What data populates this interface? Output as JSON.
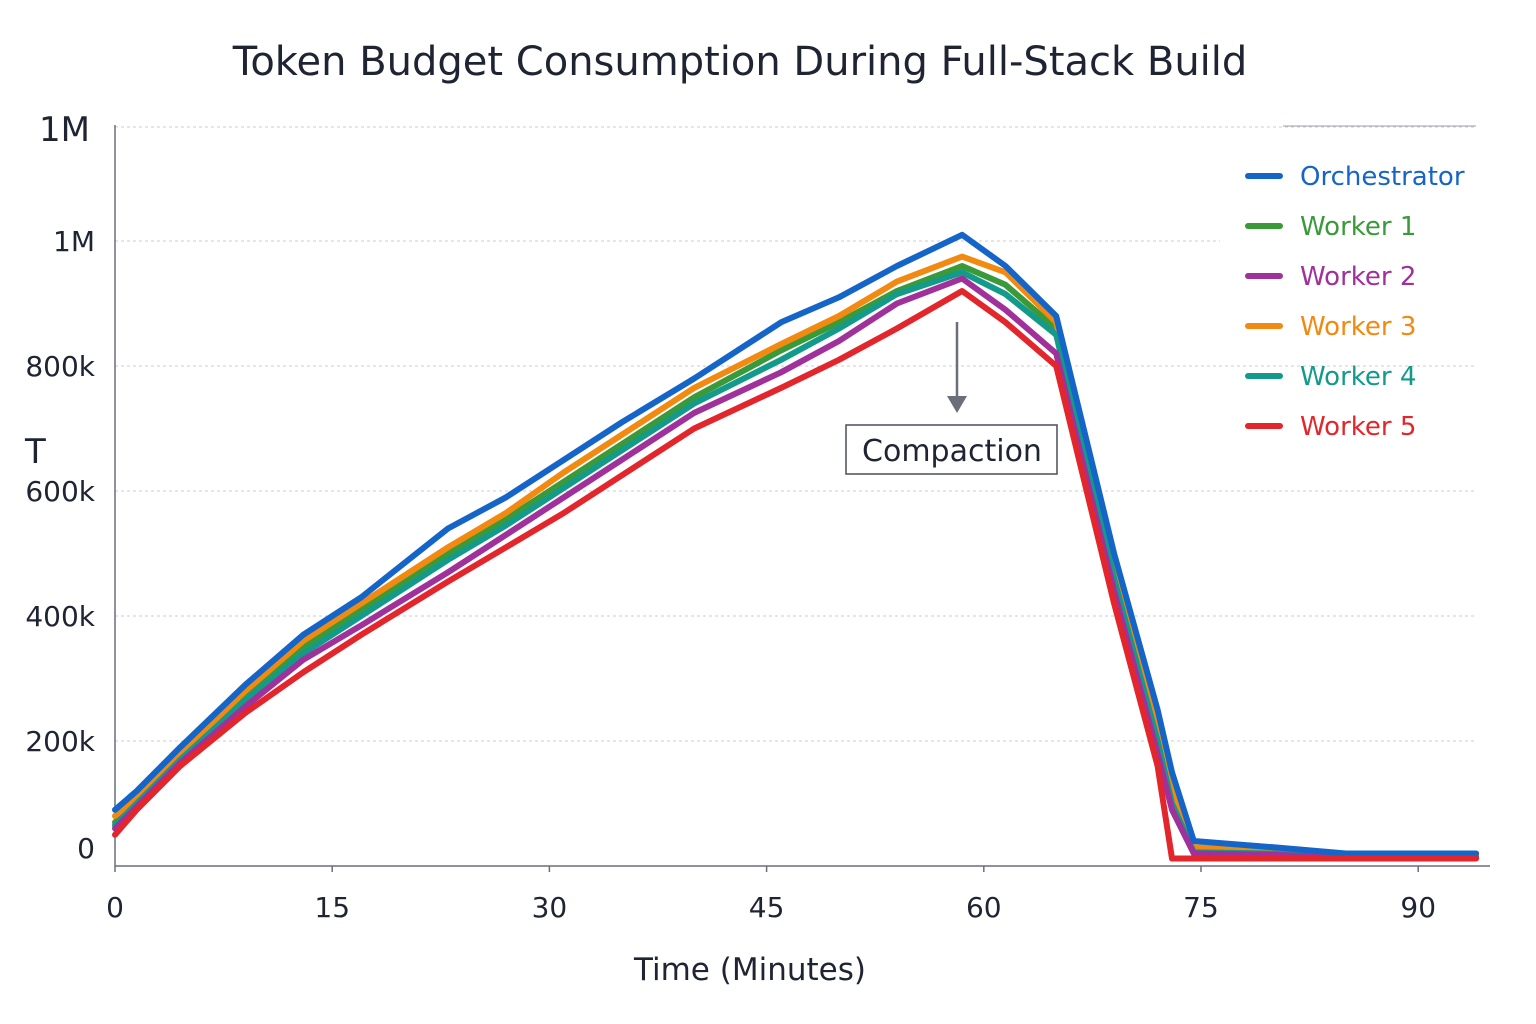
{
  "chart_data": {
    "type": "line",
    "title": "Token Budget Consumption During Full-Stack Build",
    "xlabel": "Time (Minutes)",
    "ylabel": "T",
    "x_ticks": [
      {
        "value": 0,
        "label": "0"
      },
      {
        "value": 15,
        "label": "15"
      },
      {
        "value": 30,
        "label": "30"
      },
      {
        "value": 45,
        "label": "45"
      },
      {
        "value": 60,
        "label": "60"
      },
      {
        "value": 75,
        "label": "75"
      },
      {
        "value": 90,
        "label": "90"
      }
    ],
    "y_ticks": [
      {
        "value": 0,
        "label": "0"
      },
      {
        "value": 200000,
        "label": "200k"
      },
      {
        "value": 400000,
        "label": "400k"
      },
      {
        "value": 600000,
        "label": "600k"
      },
      {
        "value": 800000,
        "label": "800k"
      },
      {
        "value": 1000000,
        "label": "1M"
      },
      {
        "value": 1200000,
        "label": "1M"
      }
    ],
    "xlim": [
      0,
      94
    ],
    "ylim": [
      0,
      1200000
    ],
    "grid": true,
    "legend": "top-right",
    "annotation": {
      "text": "Compaction",
      "x": 58.5
    },
    "x": [
      0,
      1.5,
      4.5,
      9,
      13,
      17,
      23,
      27,
      31,
      35,
      40,
      46,
      50,
      54,
      58.5,
      61.5,
      65,
      69,
      72,
      73,
      74.5,
      80,
      85,
      94
    ],
    "series": [
      {
        "name": "Orchestrator",
        "color": "#1565c8",
        "values": [
          90000,
          120000,
          190000,
          290000,
          370000,
          430000,
          540000,
          590000,
          650000,
          710000,
          780000,
          870000,
          910000,
          960000,
          1010000,
          960000,
          880000,
          500000,
          250000,
          150000,
          40000,
          30000,
          20000,
          20000
        ]
      },
      {
        "name": "Worker 1",
        "color": "#3a9a3a",
        "values": [
          70000,
          105000,
          175000,
          275000,
          350000,
          410000,
          500000,
          555000,
          615000,
          675000,
          750000,
          825000,
          870000,
          920000,
          960000,
          930000,
          860000,
          470000,
          210000,
          110000,
          25000,
          22000,
          15000,
          15000
        ]
      },
      {
        "name": "Worker 2",
        "color": "#a0319a",
        "values": [
          60000,
          95000,
          165000,
          255000,
          330000,
          385000,
          470000,
          530000,
          590000,
          650000,
          725000,
          790000,
          840000,
          900000,
          940000,
          890000,
          820000,
          440000,
          180000,
          90000,
          20000,
          18000,
          13000,
          13000
        ]
      },
      {
        "name": "Worker 3",
        "color": "#f28a12",
        "values": [
          80000,
          110000,
          180000,
          280000,
          360000,
          420000,
          510000,
          565000,
          630000,
          690000,
          765000,
          835000,
          880000,
          935000,
          975000,
          950000,
          870000,
          480000,
          220000,
          120000,
          30000,
          25000,
          17000,
          17000
        ]
      },
      {
        "name": "Worker 4",
        "color": "#139a8a",
        "values": [
          65000,
          100000,
          170000,
          265000,
          340000,
          400000,
          490000,
          545000,
          605000,
          665000,
          740000,
          810000,
          860000,
          915000,
          950000,
          915000,
          850000,
          460000,
          200000,
          100000,
          22000,
          20000,
          14000,
          14000
        ]
      },
      {
        "name": "Worker 5",
        "color": "#e2262c",
        "values": [
          50000,
          90000,
          160000,
          245000,
          310000,
          370000,
          455000,
          510000,
          565000,
          625000,
          700000,
          765000,
          810000,
          860000,
          920000,
          870000,
          800000,
          420000,
          160000,
          12000,
          12000,
          12000,
          12000,
          12000
        ]
      }
    ]
  }
}
